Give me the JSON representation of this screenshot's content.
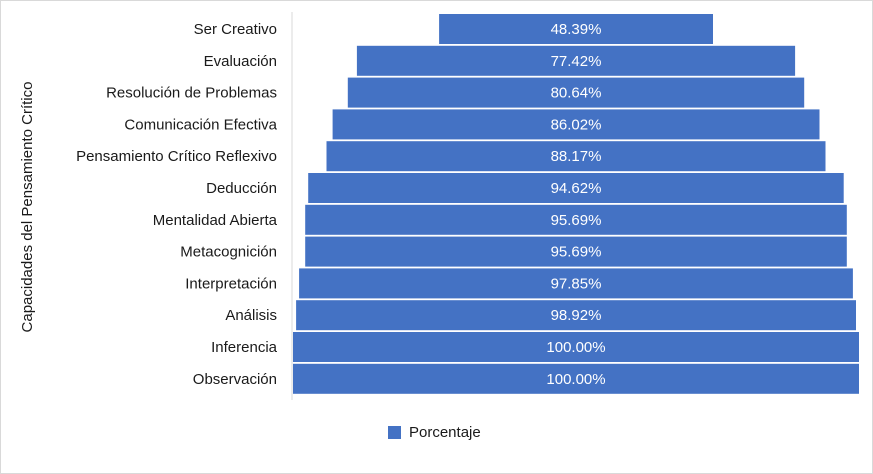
{
  "chart_data": {
    "type": "bar",
    "orientation": "horizontal-centered",
    "ylabel": "Capacidades del Pensamiento Crítico",
    "categories": [
      "Ser Creativo",
      "Evaluación",
      "Resolución de Problemas",
      "Comunicación Efectiva",
      "Pensamiento Crítico Reflexivo",
      "Deducción",
      "Mentalidad Abierta",
      "Metacognición",
      "Interpretación",
      "Análisis",
      "Inferencia",
      "Observación"
    ],
    "values": [
      48.39,
      77.42,
      80.64,
      86.02,
      88.17,
      94.62,
      95.69,
      95.69,
      97.85,
      98.92,
      100.0,
      100.0
    ],
    "value_labels": [
      "48.39%",
      "77.42%",
      "80.64%",
      "86.02%",
      "88.17%",
      "94.62%",
      "95.69%",
      "95.69%",
      "97.85%",
      "98.92%",
      "100.00%",
      "100.00%"
    ],
    "series": [
      {
        "name": "Porcentaje",
        "color": "#4472c4"
      }
    ],
    "legend_position": "bottom",
    "grid": false
  }
}
